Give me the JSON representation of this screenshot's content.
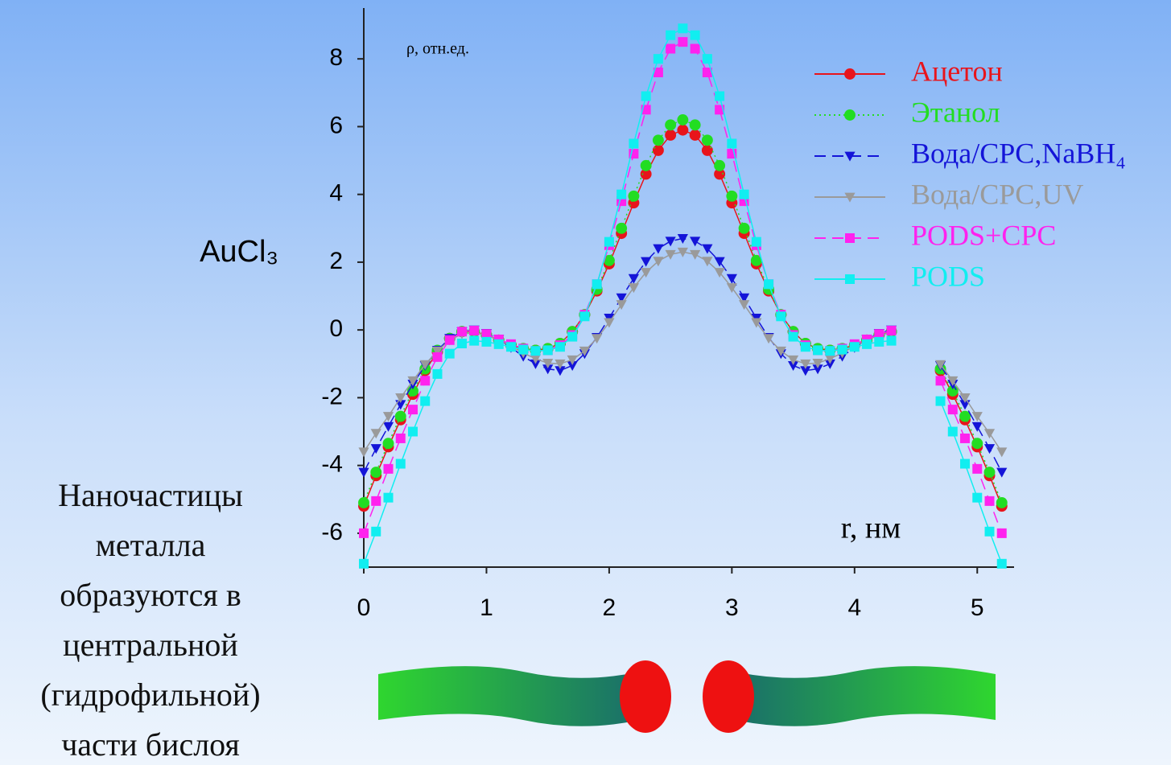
{
  "chart_data": {
    "type": "line",
    "y_label": "AuCl₃",
    "unit_label": "ρ, отн.ед.",
    "x_label": "r, нм",
    "xlim": [
      0,
      5.3
    ],
    "xticks": [
      0,
      1,
      2,
      3,
      4,
      5
    ],
    "ylim": [
      -7,
      9.5
    ],
    "yticks": [
      -6,
      -4,
      -2,
      0,
      2,
      4,
      6,
      8
    ],
    "grid": false,
    "legend": "upper right",
    "x": [
      0,
      0.1,
      0.2,
      0.3,
      0.4,
      0.5,
      0.6,
      0.7,
      0.8,
      0.9,
      1,
      1.1,
      1.2,
      1.3,
      1.4,
      1.5,
      1.6,
      1.7,
      1.8,
      1.9,
      2,
      2.1,
      2.2,
      2.3,
      2.4,
      2.5,
      2.6,
      2.7,
      2.8,
      2.9,
      3,
      3.1,
      3.2,
      3.3,
      3.4,
      3.5,
      3.6,
      3.7,
      3.8,
      3.9,
      4,
      4.1,
      4.2,
      4.3,
      4.4,
      4.5,
      4.6,
      4.7,
      4.8,
      4.9,
      5,
      5.1,
      5.2
    ],
    "series": [
      {
        "name": "Ацетон",
        "color": "#e8141b",
        "marker": "circle",
        "line_style": "solid",
        "values": [
          -5.2,
          -4.3,
          -3.45,
          -2.65,
          -1.9,
          -1.2,
          -0.65,
          -0.25,
          -0.05,
          -0.05,
          -0.15,
          -0.3,
          -0.45,
          -0.55,
          -0.6,
          -0.55,
          -0.4,
          -0.05,
          0.45,
          1.15,
          1.95,
          2.85,
          3.75,
          4.6,
          5.3,
          5.75,
          5.9,
          5.75,
          5.3,
          4.6,
          3.75,
          2.85,
          1.95,
          1.15,
          0.45,
          -0.05,
          -0.4,
          -0.55,
          -0.6,
          -0.55,
          -0.45,
          -0.3,
          -0.15,
          -0.05,
          null,
          null,
          null,
          -1.2,
          -1.9,
          -2.65,
          -3.45,
          -4.3,
          -5.2
        ]
      },
      {
        "name": "Этанол",
        "color": "#22dd22",
        "marker": "circle",
        "line_style": "dotted",
        "values": [
          -5.1,
          -4.2,
          -3.35,
          -2.55,
          -1.8,
          -1.15,
          -0.6,
          -0.25,
          -0.05,
          -0.05,
          -0.15,
          -0.3,
          -0.45,
          -0.55,
          -0.6,
          -0.55,
          -0.4,
          -0.05,
          0.45,
          1.2,
          2.05,
          3.0,
          3.95,
          4.85,
          5.6,
          6.05,
          6.2,
          6.05,
          5.6,
          4.85,
          3.95,
          3.0,
          2.05,
          1.2,
          0.45,
          -0.05,
          -0.4,
          -0.55,
          -0.6,
          -0.55,
          -0.45,
          -0.3,
          -0.15,
          -0.05,
          null,
          null,
          null,
          -1.15,
          -1.8,
          -2.55,
          -3.35,
          -4.2,
          -5.1
        ]
      },
      {
        "name": "Вода/CPC,NaBH₄",
        "color": "#1414d8",
        "marker": "triangle-down",
        "line_style": "dashed",
        "values": [
          -4.2,
          -3.5,
          -2.85,
          -2.2,
          -1.6,
          -1.05,
          -0.6,
          -0.25,
          -0.05,
          0.0,
          -0.1,
          -0.28,
          -0.52,
          -0.78,
          -1.0,
          -1.15,
          -1.2,
          -1.05,
          -0.7,
          -0.22,
          0.35,
          0.95,
          1.52,
          2.02,
          2.4,
          2.62,
          2.7,
          2.62,
          2.4,
          2.02,
          1.52,
          0.95,
          0.35,
          -0.22,
          -0.7,
          -1.05,
          -1.2,
          -1.15,
          -1.0,
          -0.78,
          -0.52,
          -0.28,
          -0.1,
          0.0,
          null,
          null,
          null,
          -1.05,
          -1.6,
          -2.2,
          -2.85,
          -3.5,
          -4.2
        ]
      },
      {
        "name": "Вода/CPC,UV",
        "color": "#9a9a9a",
        "marker": "triangle-down",
        "line_style": "solid",
        "values": [
          -3.6,
          -3.05,
          -2.55,
          -2.0,
          -1.5,
          -1.02,
          -0.62,
          -0.3,
          -0.12,
          -0.08,
          -0.15,
          -0.3,
          -0.48,
          -0.68,
          -0.85,
          -0.98,
          -1.0,
          -0.88,
          -0.62,
          -0.25,
          0.22,
          0.75,
          1.25,
          1.7,
          2.03,
          2.23,
          2.3,
          2.23,
          2.03,
          1.7,
          1.25,
          0.75,
          0.22,
          -0.25,
          -0.62,
          -0.88,
          -1.0,
          -0.98,
          -0.85,
          -0.68,
          -0.48,
          -0.3,
          -0.15,
          -0.08,
          null,
          null,
          null,
          -1.02,
          -1.5,
          -2.0,
          -2.55,
          -3.05,
          -3.6
        ]
      },
      {
        "name": "PODS+CPC",
        "color": "#ff22ee",
        "marker": "square",
        "line_style": "dashed",
        "values": [
          -6.0,
          -5.05,
          -4.1,
          -3.2,
          -2.35,
          -1.5,
          -0.8,
          -0.3,
          -0.05,
          -0.02,
          -0.12,
          -0.28,
          -0.42,
          -0.55,
          -0.62,
          -0.6,
          -0.45,
          -0.15,
          0.45,
          1.35,
          2.5,
          3.8,
          5.2,
          6.5,
          7.6,
          8.3,
          8.5,
          8.3,
          7.6,
          6.5,
          5.2,
          3.8,
          2.5,
          1.35,
          0.45,
          -0.15,
          -0.45,
          -0.6,
          -0.62,
          -0.55,
          -0.42,
          -0.28,
          -0.12,
          -0.02,
          null,
          null,
          null,
          -1.5,
          -2.35,
          -3.2,
          -4.1,
          -5.05,
          -6.0
        ]
      },
      {
        "name": "PODS",
        "color": "#11eef0",
        "marker": "square",
        "line_style": "solid",
        "values": [
          -6.9,
          -5.95,
          -4.95,
          -3.95,
          -3.0,
          -2.1,
          -1.3,
          -0.7,
          -0.4,
          -0.32,
          -0.35,
          -0.42,
          -0.5,
          -0.58,
          -0.62,
          -0.6,
          -0.5,
          -0.2,
          0.4,
          1.35,
          2.6,
          4.0,
          5.5,
          6.9,
          8.0,
          8.7,
          8.9,
          8.7,
          8.0,
          6.9,
          5.5,
          4.0,
          2.6,
          1.35,
          0.4,
          -0.2,
          -0.5,
          -0.6,
          -0.62,
          -0.58,
          -0.5,
          -0.42,
          -0.35,
          -0.32,
          null,
          null,
          null,
          -2.1,
          -3.0,
          -3.95,
          -4.95,
          -5.95,
          -6.9
        ]
      }
    ]
  },
  "caption": [
    "Наночастицы",
    "металла",
    "образуются в",
    "центральной",
    "(гидрофильной)",
    "части бислоя"
  ]
}
